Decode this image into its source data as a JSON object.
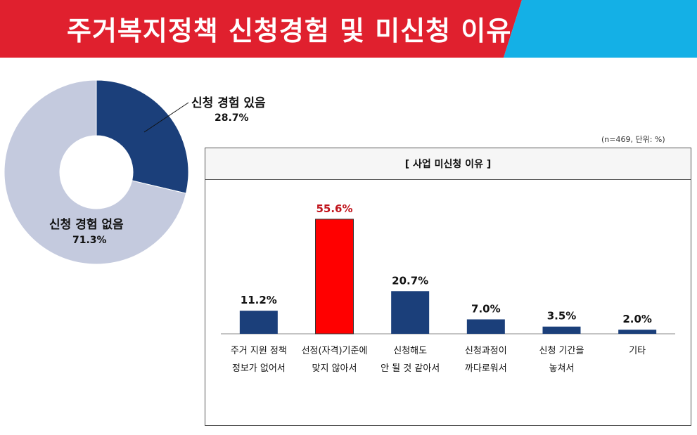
{
  "page": {
    "title": "주거복지정책 신청경험 및 미신청 이유",
    "banner_colors": {
      "red": "#e0202e",
      "cyan": "#14b0e6"
    }
  },
  "chart_data": [
    {
      "type": "pie",
      "donut": true,
      "slices": [
        {
          "label": "신청 경험 있음",
          "value_label": "28.7%",
          "value": 28.7,
          "color": "#1b3f7a"
        },
        {
          "label": "신청 경험 없음",
          "value_label": "71.3%",
          "value": 71.3,
          "color": "#c4cade"
        }
      ]
    },
    {
      "type": "bar",
      "title": "[ 사업 미신청 이유 ]",
      "unit_note": "(n=469,  단위: %)",
      "ylim": [
        0,
        60
      ],
      "categories": [
        [
          "주거 지원 정책",
          "정보가 없어서"
        ],
        [
          "선정(자격)기준에",
          "맞지 않아서"
        ],
        [
          "신청해도",
          "안 될 것 같아서"
        ],
        [
          "신청과정이",
          "까다로워서"
        ],
        [
          "신청 기간을",
          "놓쳐서"
        ],
        [
          "기타"
        ]
      ],
      "values": [
        11.2,
        55.6,
        20.7,
        7.0,
        3.5,
        2.0
      ],
      "value_labels": [
        "11.2%",
        "55.6%",
        "20.7%",
        "7.0%",
        "3.5%",
        "2.0%"
      ],
      "highlight_index": 1,
      "colors": {
        "bar": "#1b3f7a",
        "highlight": "#ff0000",
        "highlight_text": "#c0141c"
      }
    }
  ]
}
